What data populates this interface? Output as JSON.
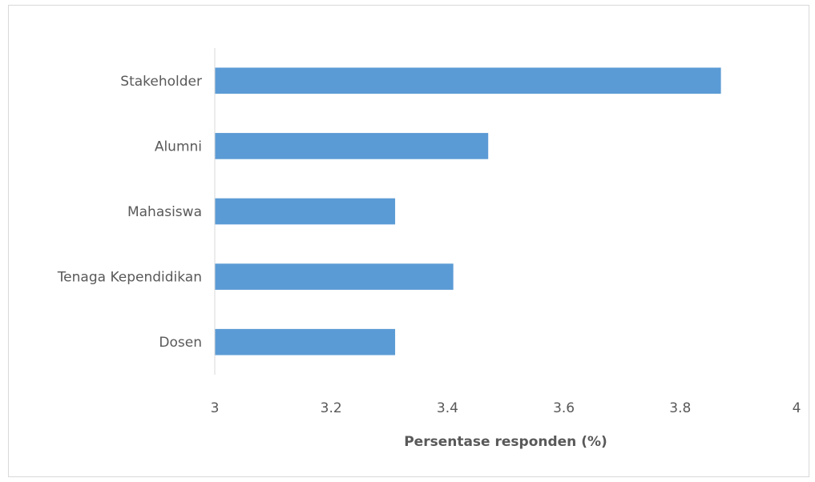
{
  "chart_data": {
    "type": "bar",
    "orientation": "horizontal",
    "title": "",
    "xlabel": "Persentase responden (%)",
    "ylabel": "",
    "categories": [
      "Stakeholder",
      "Alumni",
      "Mahasiswa",
      "Tenaga Kependidikan",
      "Dosen"
    ],
    "values": [
      3.87,
      3.47,
      3.31,
      3.41,
      3.31
    ],
    "xlim": [
      3,
      4
    ],
    "x_ticks": [
      "3",
      "3.2",
      "3.4",
      "3.6",
      "3.8",
      "4"
    ],
    "bar_color": "#5B9BD5",
    "axis_color": "#d9d9d9",
    "text_color": "#595959",
    "grid": false,
    "legend": "none"
  }
}
